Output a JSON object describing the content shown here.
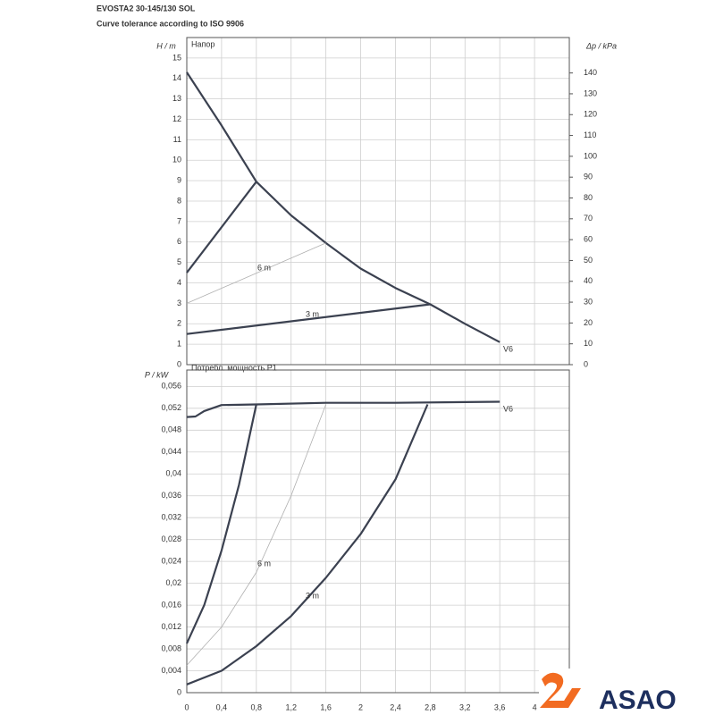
{
  "header": {
    "title": "EVOSTA2 30-145/130 SOL",
    "subtitle": "Curve tolerance according to ISO 9906"
  },
  "logo": "ASAO",
  "chart_data": [
    {
      "type": "line",
      "title": "Напор",
      "ylabel": "H / m",
      "y2label": "Δp / kPa",
      "xlim": [
        0,
        4.4
      ],
      "ylim": [
        0,
        16
      ],
      "yticks": [
        0,
        1,
        2,
        3,
        4,
        5,
        6,
        7,
        8,
        9,
        10,
        11,
        12,
        13,
        14,
        15
      ],
      "y2lim": [
        0,
        157
      ],
      "y2ticks": [
        0,
        10,
        20,
        30,
        40,
        50,
        60,
        70,
        80,
        90,
        100,
        110,
        120,
        130,
        140
      ],
      "grid": true,
      "series": [
        {
          "name": "V6",
          "color": "#3b4150",
          "x": [
            0,
            0.4,
            0.8,
            1.2,
            1.6,
            2.0,
            2.4,
            2.8,
            3.2,
            3.6
          ],
          "values": [
            14.3,
            11.7,
            8.95,
            7.3,
            5.95,
            4.7,
            3.75,
            2.95,
            2.0,
            1.1
          ]
        },
        {
          "color": "#3b4150",
          "x": [
            0,
            0.8
          ],
          "values": [
            4.5,
            8.95
          ]
        },
        {
          "name": "6 m",
          "color": "#b0b0b0",
          "x": [
            0,
            1.6
          ],
          "values": [
            3,
            5.95
          ]
        },
        {
          "name": "3 m",
          "color": "#3b4150",
          "x": [
            0,
            2.8
          ],
          "values": [
            1.5,
            2.95
          ]
        }
      ]
    },
    {
      "type": "line",
      "title": "Потребл. мощность P1",
      "ylabel": "P / kW",
      "xlim": [
        0,
        4.4
      ],
      "xticks": [
        0,
        {
          "value": 0.4,
          "label": "0,4"
        },
        {
          "value": 0.8,
          "label": "0,8"
        },
        {
          "value": 1.2,
          "label": "1,2"
        },
        {
          "value": 1.6,
          "label": "1,6"
        },
        2,
        {
          "value": 2.4,
          "label": "2,4"
        },
        {
          "value": 2.8,
          "label": "2,8"
        },
        {
          "value": 3.2,
          "label": "3,2"
        },
        {
          "value": 3.6,
          "label": "3,6"
        },
        4
      ],
      "ylim": [
        0,
        0.059
      ],
      "yticks": [
        0,
        {
          "value": 0.004,
          "label": "0,004"
        },
        {
          "value": 0.008,
          "label": "0,008"
        },
        {
          "value": 0.012,
          "label": "0,012"
        },
        {
          "value": 0.016,
          "label": "0,016"
        },
        {
          "value": 0.02,
          "label": "0,02"
        },
        {
          "value": 0.024,
          "label": "0,024"
        },
        {
          "value": 0.028,
          "label": "0,028"
        },
        {
          "value": 0.032,
          "label": "0,032"
        },
        {
          "value": 0.036,
          "label": "0,036"
        },
        {
          "value": 0.04,
          "label": "0,04"
        },
        {
          "value": 0.044,
          "label": "0,044"
        },
        {
          "value": 0.048,
          "label": "0,048"
        },
        {
          "value": 0.052,
          "label": "0,052"
        },
        {
          "value": 0.056,
          "label": "0,056"
        }
      ],
      "grid": true,
      "series": [
        {
          "name": "V6",
          "color": "#3b4150",
          "x": [
            0,
            0.1,
            0.2,
            0.4,
            0.8,
            1.6,
            2.4,
            3.6
          ],
          "values": [
            0.0504,
            0.0505,
            0.0515,
            0.0526,
            0.0527,
            0.053,
            0.053,
            0.0532
          ]
        },
        {
          "color": "#3b4150",
          "x": [
            0,
            0.2,
            0.4,
            0.6,
            0.8
          ],
          "values": [
            0.009,
            0.016,
            0.026,
            0.038,
            0.0527
          ]
        },
        {
          "name": "6 m",
          "color": "#b0b0b0",
          "x": [
            0,
            0.4,
            0.8,
            1.2,
            1.6
          ],
          "values": [
            0.005,
            0.012,
            0.022,
            0.036,
            0.0527
          ]
        },
        {
          "name": "3 m",
          "color": "#3b4150",
          "x": [
            0,
            0.4,
            0.8,
            1.2,
            1.6,
            2.0,
            2.4,
            2.77
          ],
          "values": [
            0.0015,
            0.004,
            0.0085,
            0.014,
            0.021,
            0.029,
            0.039,
            0.0527
          ]
        }
      ]
    }
  ]
}
